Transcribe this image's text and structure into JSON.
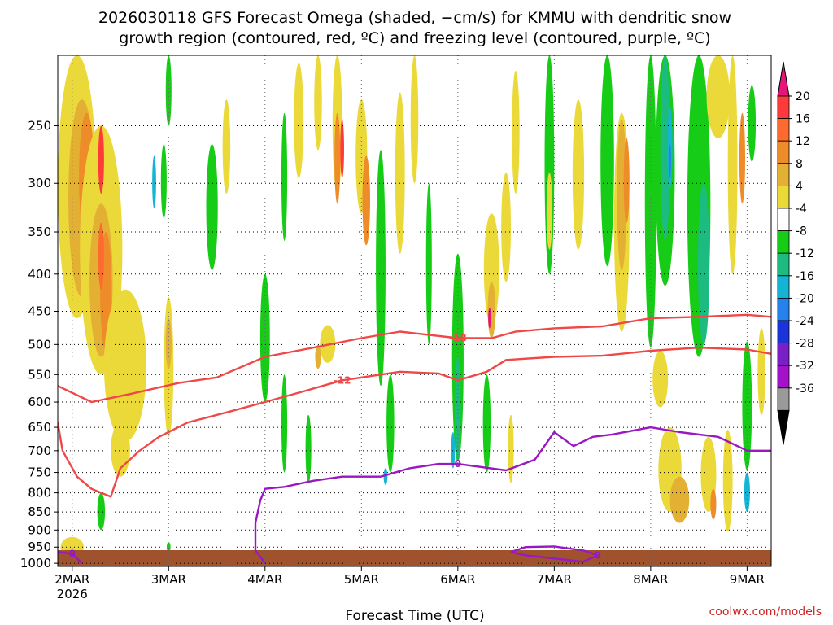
{
  "title_line1": "2026030118 GFS Forecast Omega (shaded, −cm/s) for KMMU with dendritic snow",
  "title_line2": "growth region (contoured, red, ºC) and freezing level (contoured, purple, ºC)",
  "xlabel": "Forecast Time (UTC)",
  "credit": "coolwx.com/models",
  "chart_data": {
    "type": "heatmap",
    "title": "2026030118 GFS Forecast Omega (shaded, −cm/s) for KMMU with dendritic snow growth region (contoured, red, ºC) and freezing level (contoured, purple, ºC)",
    "xlabel": "Forecast Time (UTC)",
    "ylabel": "",
    "x_ticks": [
      "2MAR",
      "3MAR",
      "4MAR",
      "5MAR",
      "6MAR",
      "7MAR",
      "8MAR",
      "9MAR"
    ],
    "x_tick_sublabel": "2026",
    "x_range": [
      1.85,
      9.25
    ],
    "y_ticks": [
      250,
      300,
      350,
      400,
      450,
      500,
      550,
      600,
      650,
      700,
      750,
      800,
      850,
      900,
      950,
      1000
    ],
    "y_range": [
      1010,
      200
    ],
    "y_scale": "log",
    "grid": true,
    "colorbar": {
      "labels": [
        "20",
        "16",
        "12",
        "8",
        "4",
        "-4",
        "-8",
        "-12",
        "-16",
        "-20",
        "-24",
        "-28",
        "-32",
        "-36"
      ],
      "colors": [
        "#e6157a",
        "#ff3a3a",
        "#ff6a2e",
        "#ee8c2a",
        "#e3b033",
        "#ebd93a",
        "#ffffff",
        "#16cc16",
        "#1cbb80",
        "#13b4d4",
        "#2582ec",
        "#1b33d8",
        "#7a1ec6",
        "#a312c8",
        "#9a9a9a",
        "#000000"
      ]
    },
    "contours": [
      {
        "label": "-18",
        "color": "#f04848",
        "points": [
          [
            1.85,
            570
          ],
          [
            2.2,
            600
          ],
          [
            2.6,
            585
          ],
          [
            3.1,
            565
          ],
          [
            3.5,
            555
          ],
          [
            4.0,
            520
          ],
          [
            4.5,
            505
          ],
          [
            5.0,
            490
          ],
          [
            5.4,
            480
          ],
          [
            6.0,
            490
          ],
          [
            6.35,
            490
          ],
          [
            6.6,
            480
          ],
          [
            7.0,
            475
          ],
          [
            7.5,
            472
          ],
          [
            8.0,
            460
          ],
          [
            8.5,
            458
          ],
          [
            9.0,
            455
          ],
          [
            9.25,
            458
          ]
        ]
      },
      {
        "label": "-12",
        "color": "#f04848",
        "points": [
          [
            1.85,
            640
          ],
          [
            1.9,
            700
          ],
          [
            2.05,
            760
          ],
          [
            2.2,
            790
          ],
          [
            2.4,
            810
          ],
          [
            2.5,
            740
          ],
          [
            2.7,
            700
          ],
          [
            2.9,
            670
          ],
          [
            3.2,
            640
          ],
          [
            3.6,
            620
          ],
          [
            4.0,
            600
          ],
          [
            4.4,
            580
          ],
          [
            4.8,
            560
          ],
          [
            5.4,
            545
          ],
          [
            5.8,
            548
          ],
          [
            6.0,
            560
          ],
          [
            6.3,
            545
          ],
          [
            6.5,
            525
          ],
          [
            7.0,
            520
          ],
          [
            7.5,
            518
          ],
          [
            8.0,
            510
          ],
          [
            8.5,
            505
          ],
          [
            9.0,
            508
          ],
          [
            9.25,
            515
          ]
        ]
      },
      {
        "label": "0",
        "color": "#9a18c4",
        "points": [
          [
            4.0,
            1000
          ],
          [
            3.9,
            960
          ],
          [
            3.9,
            880
          ],
          [
            3.95,
            820
          ],
          [
            4.0,
            790
          ],
          [
            4.2,
            785
          ],
          [
            4.5,
            770
          ],
          [
            4.8,
            760
          ],
          [
            5.2,
            760
          ],
          [
            5.5,
            740
          ],
          [
            5.8,
            730
          ],
          [
            6.0,
            730
          ],
          [
            6.5,
            745
          ],
          [
            6.8,
            720
          ],
          [
            7.0,
            660
          ],
          [
            7.2,
            690
          ],
          [
            7.4,
            670
          ],
          [
            7.6,
            665
          ],
          [
            8.0,
            650
          ],
          [
            8.3,
            660
          ],
          [
            8.7,
            670
          ],
          [
            9.0,
            700
          ],
          [
            9.25,
            700
          ]
        ]
      },
      {
        "label": "0",
        "color": "#9a18c4",
        "points": [
          [
            6.55,
            965
          ],
          [
            6.7,
            950
          ],
          [
            7.0,
            948
          ],
          [
            7.3,
            960
          ],
          [
            7.45,
            975
          ],
          [
            7.3,
            995
          ],
          [
            7.0,
            985
          ],
          [
            6.7,
            975
          ],
          [
            6.55,
            965
          ]
        ]
      },
      {
        "label": "0",
        "color": "#9a18c4",
        "points": [
          [
            1.85,
            965
          ],
          [
            2.0,
            970
          ],
          [
            2.1,
            1000
          ]
        ]
      }
    ]
  }
}
